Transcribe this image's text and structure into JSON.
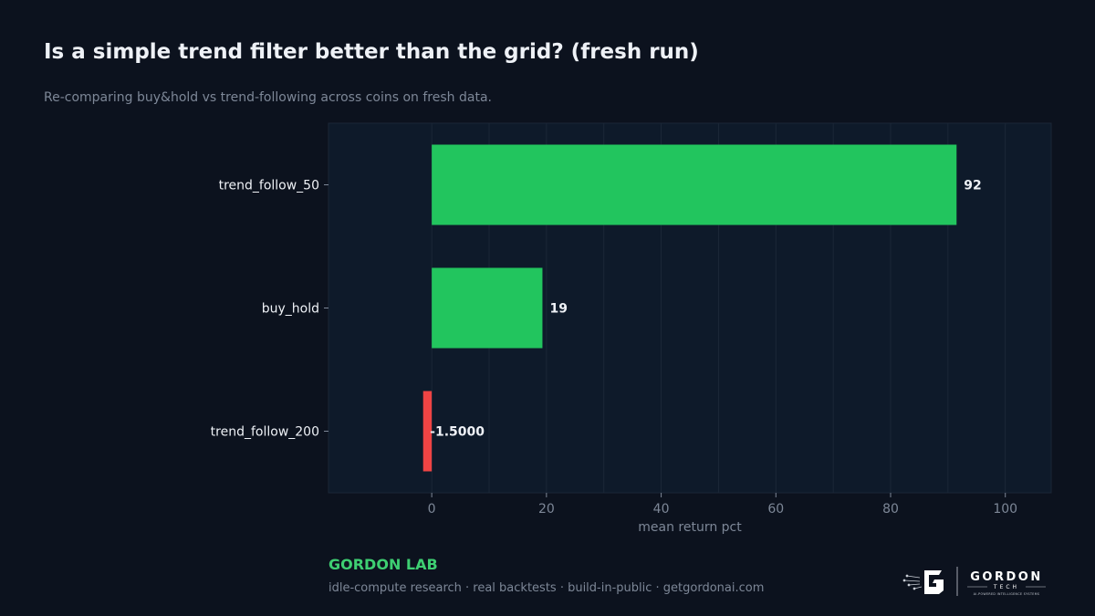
{
  "header": {
    "title": "Is a simple trend filter better than the grid? (fresh run)",
    "subtitle": "Re-comparing buy&hold vs trend-following across coins on fresh data."
  },
  "footer": {
    "brand": "GORDON LAB",
    "tagline": "idle-compute research · real backtests · build-in-public · getgordonai.com",
    "logo_word": "GORDON",
    "logo_sub": "TECH",
    "logo_tagline": "AI-POWERED INTELLIGENCE SYSTEMS"
  },
  "colors": {
    "background": "#0c121e",
    "plot_background": "#0e1a2a",
    "positive": "#22c55e",
    "negative": "#ef4444",
    "grid": "#1b2737",
    "text": "#eef1f6",
    "muted": "#7d8797"
  },
  "chart_data": {
    "type": "bar",
    "orientation": "horizontal",
    "categories": [
      "trend_follow_50",
      "buy_hold",
      "trend_follow_200"
    ],
    "values": [
      91.5,
      19.3,
      -1.5
    ],
    "value_labels": [
      "92",
      "19",
      "-1.5000"
    ],
    "title": "Is a simple trend filter better than the grid? (fresh run)",
    "xlabel": "mean return pct",
    "ylabel": "",
    "xlim": [
      -18,
      108
    ],
    "xticks": [
      0,
      20,
      40,
      60,
      80,
      100
    ],
    "xtick_labels": [
      "0",
      "20",
      "40",
      "60",
      "80",
      "100"
    ],
    "grid": "vertical"
  }
}
